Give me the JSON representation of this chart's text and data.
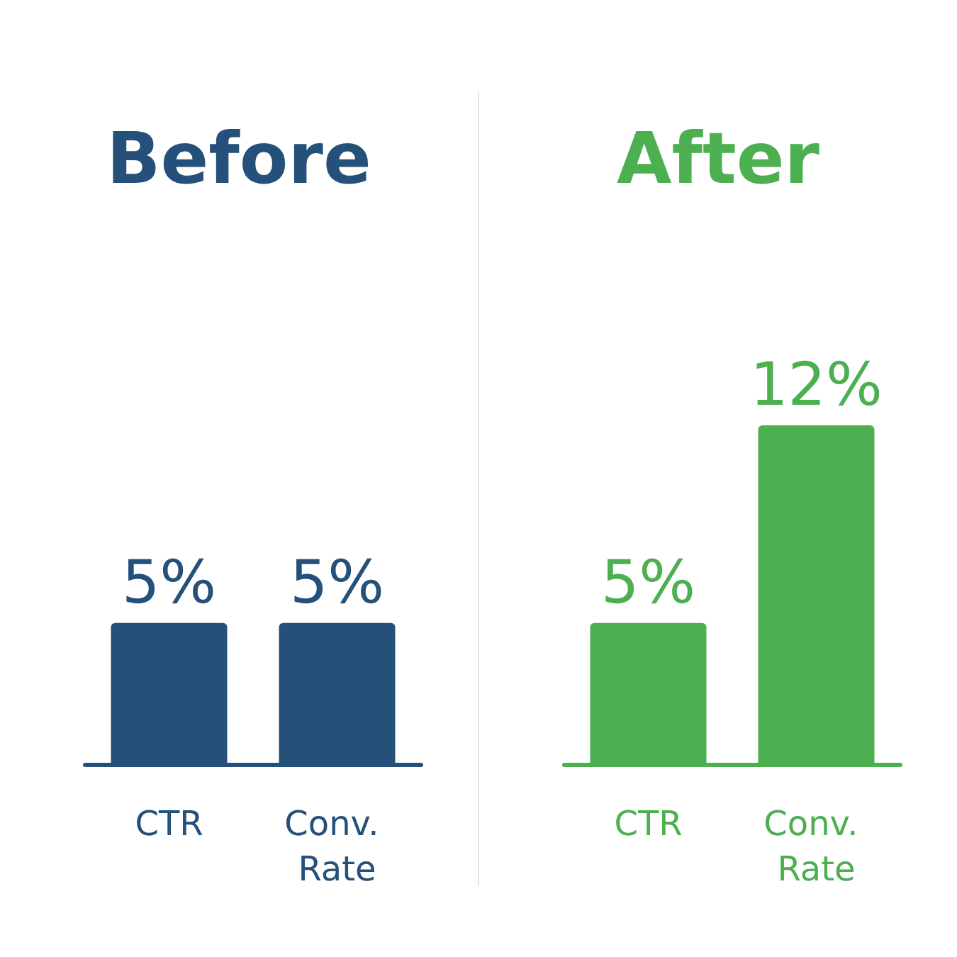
{
  "chart_data": [
    {
      "type": "bar",
      "title": "Before",
      "categories": [
        "CTR",
        "Conv. Rate"
      ],
      "values": [
        5,
        5
      ],
      "value_labels": [
        "5%",
        "5%"
      ],
      "color": "#24507a"
    },
    {
      "type": "bar",
      "title": "After",
      "categories": [
        "CTR",
        "Conv. Rate"
      ],
      "values": [
        5,
        12
      ],
      "value_labels": [
        "5%",
        "12%"
      ],
      "color": "#4caf50"
    }
  ]
}
